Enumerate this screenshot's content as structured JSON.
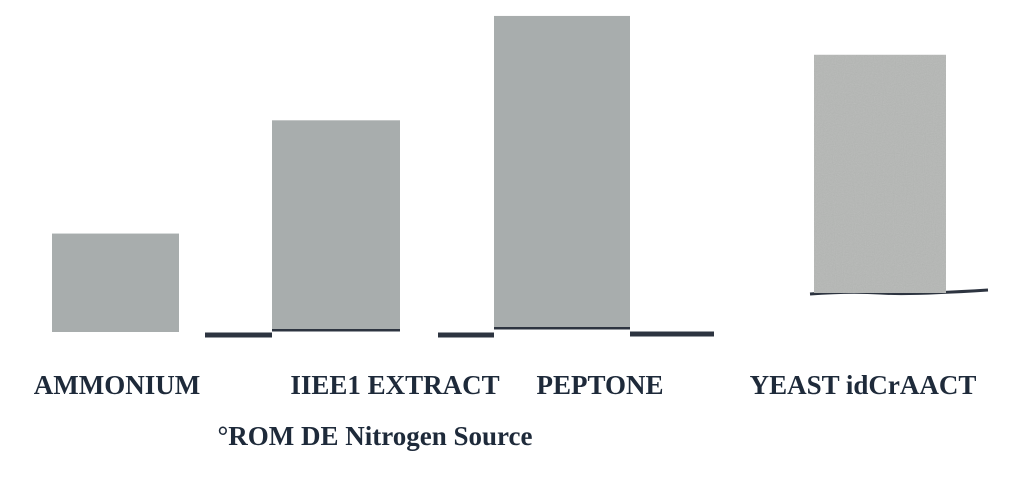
{
  "chart_data": {
    "type": "bar",
    "categories": [
      "AMMONIUM",
      "IIEE1 EXTRACT",
      "PEPTONE",
      "YEAST idCrAACT"
    ],
    "values": [
      100,
      212,
      316,
      242
    ],
    "xlabel": "°ROM DE Nitrogen Source",
    "ylabel": "",
    "ylim": [
      0,
      320
    ],
    "grid": false,
    "legend": "none",
    "colors": {
      "bar": "#a8adad",
      "bar_textured": "#b5b7b5",
      "baseline": "#2d3440",
      "text": "#1e2a3a"
    }
  }
}
